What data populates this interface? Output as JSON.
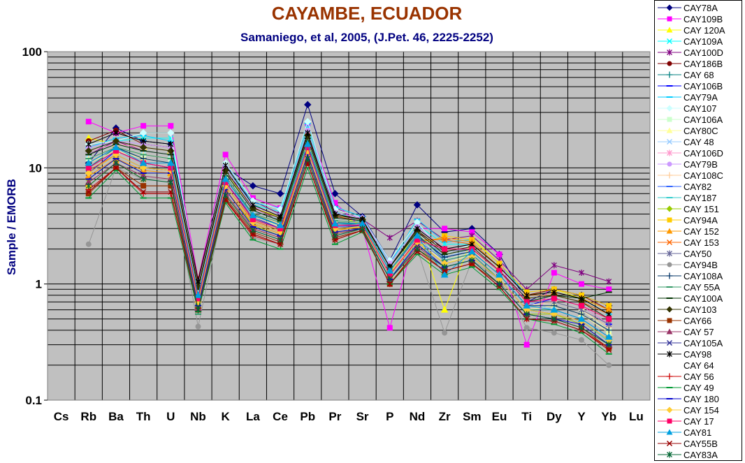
{
  "chart_data": {
    "type": "line",
    "title": "CAYAMBE, ECUADOR",
    "subtitle": "Samaniego, et al, 2005, (J.Pet. 46, 2225-2252)",
    "ylabel": "Sample / EMORB",
    "xlabel": "",
    "yscale": "log",
    "ylim": [
      0.1,
      100
    ],
    "ytick_labels": [
      "0.1",
      "1",
      "10",
      "100"
    ],
    "grid": true,
    "legend_position": "right",
    "categories": [
      "Cs",
      "Rb",
      "Ba",
      "Th",
      "U",
      "Nb",
      "K",
      "La",
      "Ce",
      "Pb",
      "Pr",
      "Sr",
      "P",
      "Nd",
      "Zr",
      "Sm",
      "Eu",
      "Ti",
      "Dy",
      "Y",
      "Yb",
      "Lu"
    ],
    "series": [
      {
        "name": "CAY78A",
        "color": "#000080",
        "marker": "diamond",
        "values": [
          null,
          11,
          22,
          17,
          16,
          0.7,
          10,
          7,
          6,
          35,
          6,
          3.8,
          1.6,
          4.8,
          2.8,
          3.0,
          1.8,
          0.7,
          0.9,
          0.8,
          0.65,
          null
        ]
      },
      {
        "name": "CAY109B",
        "color": "#FF00FF",
        "marker": "square",
        "values": [
          null,
          25,
          20,
          23,
          23,
          1.1,
          13,
          5.5,
          4.5,
          24,
          5,
          3.0,
          0.42,
          3.0,
          3.0,
          2.8,
          1.8,
          0.3,
          1.25,
          1.0,
          0.9,
          null
        ]
      },
      {
        "name": "CAY 120A",
        "color": "#FFFF00",
        "marker": "triangle",
        "values": [
          null,
          18,
          16,
          15,
          14,
          1.0,
          9,
          4.5,
          3.8,
          20,
          4.0,
          3.2,
          1.2,
          3.0,
          0.6,
          2.5,
          1.5,
          0.8,
          0.9,
          0.75,
          0.6,
          null
        ]
      },
      {
        "name": "CAY109A",
        "color": "#00FFFF",
        "marker": "x",
        "values": [
          null,
          14,
          17,
          18,
          18,
          1.0,
          10,
          4.8,
          4.2,
          22,
          4.2,
          3.4,
          1.5,
          3.2,
          2.2,
          2.2,
          1.4,
          0.8,
          0.8,
          0.7,
          0.55,
          null
        ]
      },
      {
        "name": "CAY100D",
        "color": "#800080",
        "marker": "star",
        "values": [
          null,
          13,
          17,
          14,
          13,
          0.9,
          9,
          5.2,
          4.0,
          18,
          4.5,
          3.6,
          2.5,
          3.5,
          2.4,
          2.6,
          1.6,
          0.9,
          1.45,
          1.25,
          1.05,
          null
        ]
      },
      {
        "name": "CAY186B",
        "color": "#800000",
        "marker": "circle",
        "values": [
          null,
          17,
          21,
          16,
          15,
          1.1,
          10,
          4.6,
          3.5,
          20,
          3.8,
          3.5,
          1.4,
          2.8,
          2.0,
          2.2,
          1.4,
          0.8,
          0.9,
          0.8,
          0.6,
          null
        ]
      },
      {
        "name": "CAY 68",
        "color": "#008080",
        "marker": "plus",
        "values": [
          null,
          10,
          15,
          12,
          11,
          0.8,
          8,
          4.0,
          3.2,
          16,
          3.4,
          3.3,
          1.3,
          2.6,
          1.8,
          2.0,
          1.3,
          0.7,
          0.8,
          0.7,
          0.5,
          null
        ]
      },
      {
        "name": "CAY106B",
        "color": "#0000FF",
        "marker": "dash",
        "values": [
          null,
          9,
          14,
          11,
          10,
          0.75,
          7.5,
          3.8,
          3.0,
          15,
          3.2,
          3.2,
          1.2,
          2.5,
          1.7,
          1.9,
          1.2,
          0.65,
          0.75,
          0.65,
          0.45,
          null
        ]
      },
      {
        "name": "CAY79A",
        "color": "#00CCFF",
        "marker": "dash",
        "values": [
          null,
          15,
          18,
          19,
          17,
          1.0,
          11,
          5.0,
          4.5,
          24,
          4.6,
          3.8,
          1.5,
          3.6,
          2.3,
          2.4,
          1.5,
          0.8,
          0.85,
          0.75,
          0.55,
          null
        ]
      },
      {
        "name": "CAY107",
        "color": "#CCFFFF",
        "marker": "diamond",
        "values": [
          null,
          16,
          17,
          20,
          20,
          1.0,
          11,
          5.2,
          4.4,
          25,
          4.4,
          3.7,
          1.6,
          3.4,
          1.8,
          2.2,
          1.4,
          0.75,
          0.8,
          0.7,
          0.5,
          null
        ]
      },
      {
        "name": "CAY106A",
        "color": "#CCFFCC",
        "marker": "square",
        "values": [
          null,
          12,
          15,
          13,
          12,
          0.85,
          8.5,
          4.0,
          3.4,
          17,
          3.5,
          3.4,
          1.3,
          2.6,
          1.6,
          1.9,
          1.2,
          0.65,
          0.7,
          0.6,
          0.4,
          null
        ]
      },
      {
        "name": "CAY80C",
        "color": "#FFFF99",
        "marker": "triangle",
        "values": [
          null,
          11,
          14,
          12,
          11,
          0.8,
          8,
          3.8,
          3.1,
          16,
          3.3,
          3.3,
          1.2,
          2.5,
          1.5,
          1.8,
          1.1,
          0.6,
          0.65,
          0.55,
          0.38,
          null
        ]
      },
      {
        "name": "CAY 48",
        "color": "#99CCFF",
        "marker": "x",
        "values": [
          null,
          13,
          16,
          14,
          13,
          0.9,
          9,
          4.2,
          3.6,
          18,
          3.7,
          3.5,
          1.4,
          2.8,
          1.7,
          2.0,
          1.3,
          0.7,
          0.6,
          0.5,
          0.35,
          null
        ]
      },
      {
        "name": "CAY106D",
        "color": "#FF99CC",
        "marker": "star",
        "values": [
          null,
          14,
          16,
          15,
          14,
          0.95,
          9.5,
          4.4,
          3.7,
          19,
          3.9,
          3.6,
          1.4,
          2.9,
          1.9,
          2.1,
          1.3,
          0.7,
          0.75,
          0.65,
          0.45,
          null
        ]
      },
      {
        "name": "CAY79B",
        "color": "#CC99FF",
        "marker": "circle",
        "values": [
          null,
          15,
          17,
          16,
          15,
          1.0,
          10,
          4.6,
          3.9,
          21,
          4.1,
          3.7,
          1.5,
          3.1,
          2.0,
          2.2,
          1.4,
          0.75,
          0.8,
          0.7,
          0.5,
          null
        ]
      },
      {
        "name": "CAY108C",
        "color": "#FFCC99",
        "marker": "plus",
        "values": [
          null,
          12,
          15,
          13,
          12,
          0.85,
          8.5,
          4.0,
          3.3,
          17,
          3.5,
          3.4,
          1.3,
          2.7,
          1.8,
          2.0,
          1.2,
          0.65,
          0.7,
          0.6,
          0.42,
          null
        ]
      },
      {
        "name": "CAY82",
        "color": "#3366FF",
        "marker": "dash",
        "values": [
          null,
          10,
          14,
          11,
          10,
          0.75,
          7.5,
          3.6,
          3.0,
          15,
          3.1,
          3.2,
          1.2,
          2.4,
          1.6,
          1.8,
          1.1,
          0.6,
          0.6,
          0.5,
          0.35,
          null
        ]
      },
      {
        "name": "CAY187",
        "color": "#33CCCC",
        "marker": "dash",
        "values": [
          null,
          9,
          13,
          10,
          9.5,
          0.7,
          7,
          3.4,
          2.8,
          14,
          3.0,
          3.1,
          1.1,
          2.3,
          1.5,
          1.7,
          1.1,
          0.6,
          0.55,
          0.48,
          0.32,
          null
        ]
      },
      {
        "name": "CAY 151",
        "color": "#99CC00",
        "marker": "diamond",
        "values": [
          null,
          8,
          12,
          9,
          9,
          0.65,
          6.5,
          3.2,
          2.6,
          13,
          2.8,
          3.0,
          1.1,
          2.2,
          1.4,
          1.6,
          1.0,
          0.55,
          0.55,
          0.45,
          0.3,
          null
        ]
      },
      {
        "name": "CAY94A",
        "color": "#FFCC00",
        "marker": "square",
        "values": [
          null,
          7,
          11,
          8,
          8,
          0.6,
          6,
          3.0,
          2.5,
          12,
          2.7,
          3.0,
          1.1,
          2.1,
          2.6,
          2.4,
          1.5,
          0.85,
          0.9,
          0.8,
          0.65,
          null
        ]
      },
      {
        "name": "CAY 152",
        "color": "#FF9900",
        "marker": "triangle",
        "values": [
          null,
          8.5,
          12,
          9.5,
          9,
          0.65,
          6.5,
          3.3,
          2.7,
          13,
          2.9,
          3.1,
          1.2,
          2.3,
          2.5,
          2.3,
          1.4,
          0.8,
          0.85,
          0.75,
          0.6,
          null
        ]
      },
      {
        "name": "CAY 153",
        "color": "#FF6600",
        "marker": "x",
        "values": [
          null,
          9.5,
          13,
          10,
          9.5,
          0.7,
          7,
          3.5,
          2.9,
          14,
          3.0,
          3.2,
          1.2,
          2.4,
          2.4,
          2.2,
          1.4,
          0.8,
          0.8,
          0.7,
          0.55,
          null
        ]
      },
      {
        "name": "CAY50",
        "color": "#666699",
        "marker": "star",
        "values": [
          null,
          10,
          14,
          11,
          10,
          0.75,
          7.5,
          3.7,
          3.0,
          15,
          3.2,
          3.3,
          1.3,
          2.5,
          1.9,
          2.0,
          1.3,
          0.7,
          0.7,
          0.6,
          0.45,
          null
        ]
      },
      {
        "name": "CAY94B",
        "color": "#969696",
        "marker": "circle",
        "values": [
          null,
          2.2,
          10,
          8,
          8,
          0.43,
          5.5,
          2.5,
          2.2,
          12,
          2.5,
          3.0,
          1.0,
          2.0,
          0.38,
          1.6,
          1.1,
          0.42,
          0.38,
          0.33,
          0.2,
          null
        ]
      },
      {
        "name": "CAY108A",
        "color": "#003366",
        "marker": "plus",
        "values": [
          null,
          11,
          15,
          12,
          11,
          0.8,
          8,
          3.9,
          3.2,
          16,
          3.3,
          3.3,
          1.3,
          2.6,
          1.7,
          1.9,
          1.2,
          0.65,
          0.65,
          0.55,
          0.4,
          null
        ]
      },
      {
        "name": "CAY 55A",
        "color": "#339966",
        "marker": "dash",
        "values": [
          null,
          12,
          15,
          13,
          12,
          0.55,
          8.5,
          4.0,
          3.4,
          17,
          3.5,
          3.4,
          1.3,
          2.7,
          1.6,
          1.8,
          1.1,
          0.6,
          0.6,
          0.5,
          0.35,
          null
        ]
      },
      {
        "name": "CAY100A",
        "color": "#003300",
        "marker": "dash",
        "values": [
          null,
          13,
          16,
          14,
          13,
          0.9,
          9,
          4.3,
          3.5,
          18,
          3.7,
          3.5,
          1.4,
          2.8,
          1.8,
          2.0,
          1.3,
          0.7,
          0.8,
          0.75,
          0.85,
          null
        ]
      },
      {
        "name": "CAY103",
        "color": "#333300",
        "marker": "diamond",
        "values": [
          null,
          14,
          17,
          15,
          14,
          0.95,
          9.5,
          4.5,
          3.7,
          19,
          3.9,
          3.6,
          1.4,
          2.9,
          1.9,
          2.1,
          1.3,
          0.75,
          0.8,
          0.7,
          0.5,
          null
        ]
      },
      {
        "name": "CAY66",
        "color": "#993300",
        "marker": "square",
        "values": [
          null,
          6,
          10,
          7,
          7,
          0.6,
          5.5,
          2.8,
          2.3,
          11,
          2.5,
          2.9,
          1.0,
          2.0,
          1.3,
          1.5,
          1.0,
          0.55,
          0.5,
          0.42,
          0.28,
          null
        ]
      },
      {
        "name": "CAY 57",
        "color": "#993366",
        "marker": "triangle",
        "values": [
          null,
          7.5,
          11,
          8.5,
          8,
          0.62,
          6,
          3.0,
          2.5,
          12,
          2.7,
          3.0,
          1.1,
          2.1,
          1.4,
          1.6,
          1.0,
          0.55,
          0.5,
          0.42,
          0.3,
          null
        ]
      },
      {
        "name": "CAY105A",
        "color": "#333399",
        "marker": "x",
        "values": [
          null,
          9,
          13,
          10,
          9.5,
          0.7,
          7,
          3.4,
          2.8,
          14,
          3.0,
          3.2,
          1.2,
          2.3,
          1.5,
          1.7,
          1.1,
          0.6,
          0.55,
          0.48,
          0.33,
          null
        ]
      },
      {
        "name": "CAY98",
        "color": "#000000",
        "marker": "star",
        "values": [
          null,
          16,
          20,
          17,
          16,
          1.05,
          10.5,
          4.8,
          3.8,
          20,
          4.0,
          3.6,
          1.4,
          3.0,
          2.0,
          2.2,
          1.4,
          0.8,
          0.85,
          0.75,
          0.55,
          null
        ]
      },
      {
        "name": "CAY 64",
        "color": "#FFFFFF",
        "marker": "none",
        "values": [
          null,
          null,
          null,
          null,
          null,
          null,
          null,
          null,
          null,
          null,
          null,
          null,
          null,
          null,
          null,
          null,
          null,
          null,
          null,
          null,
          null,
          null
        ]
      },
      {
        "name": "CAY 56",
        "color": "#CC0000",
        "marker": "plus",
        "values": [
          null,
          6.5,
          10,
          6,
          6,
          0.62,
          5.2,
          2.6,
          2.2,
          11,
          2.4,
          2.9,
          1.0,
          1.9,
          1.3,
          1.5,
          0.95,
          0.5,
          0.48,
          0.4,
          0.28,
          null
        ]
      },
      {
        "name": "CAY 49",
        "color": "#009933",
        "marker": "dash",
        "values": [
          null,
          5.5,
          9.5,
          5.5,
          5.5,
          0.58,
          5,
          2.4,
          2.0,
          10,
          2.2,
          2.8,
          1.0,
          1.8,
          1.2,
          1.4,
          0.9,
          0.5,
          0.45,
          0.38,
          0.25,
          null
        ]
      },
      {
        "name": "CAY 180",
        "color": "#0000CC",
        "marker": "dash",
        "values": [
          null,
          8,
          12,
          9,
          9,
          0.65,
          6.5,
          3.1,
          2.6,
          13,
          2.8,
          3.0,
          1.1,
          2.2,
          1.4,
          1.6,
          1.0,
          0.55,
          0.5,
          0.45,
          0.3,
          null
        ]
      },
      {
        "name": "CAY 154",
        "color": "#FFCC33",
        "marker": "diamond",
        "values": [
          null,
          9,
          13,
          10,
          9.5,
          0.7,
          7,
          3.4,
          2.8,
          14,
          3.0,
          3.1,
          1.2,
          2.3,
          1.5,
          1.7,
          1.1,
          0.6,
          0.55,
          0.48,
          0.33,
          null
        ]
      },
      {
        "name": "CAY 17",
        "color": "#FF0066",
        "marker": "square",
        "values": [
          null,
          10,
          14,
          11,
          10,
          0.75,
          7.5,
          3.6,
          3.0,
          15,
          3.2,
          3.2,
          1.2,
          2.4,
          2.0,
          2.0,
          1.3,
          0.7,
          0.75,
          0.65,
          0.5,
          null
        ]
      },
      {
        "name": "CAY81",
        "color": "#00A0E0",
        "marker": "triangle",
        "values": [
          null,
          11,
          15,
          11,
          11,
          0.8,
          8,
          3.9,
          3.2,
          16,
          3.3,
          3.3,
          1.3,
          2.6,
          1.2,
          1.9,
          1.2,
          0.65,
          0.6,
          0.5,
          0.35,
          null
        ]
      },
      {
        "name": "CAY55B",
        "color": "#990000",
        "marker": "x",
        "values": [
          null,
          6.2,
          10,
          6.2,
          6.2,
          0.6,
          5.3,
          2.7,
          2.2,
          11,
          2.4,
          2.9,
          1.0,
          1.9,
          1.3,
          1.5,
          0.95,
          0.5,
          0.48,
          0.4,
          0.27,
          null
        ]
      },
      {
        "name": "CAY83A",
        "color": "#006633",
        "marker": "star",
        "values": [
          null,
          7,
          11,
          8,
          7.5,
          0.6,
          5.8,
          2.9,
          2.4,
          12,
          2.6,
          3.0,
          1.1,
          2.0,
          1.4,
          1.6,
          1.0,
          0.55,
          0.5,
          0.42,
          0.3,
          null
        ]
      }
    ]
  }
}
